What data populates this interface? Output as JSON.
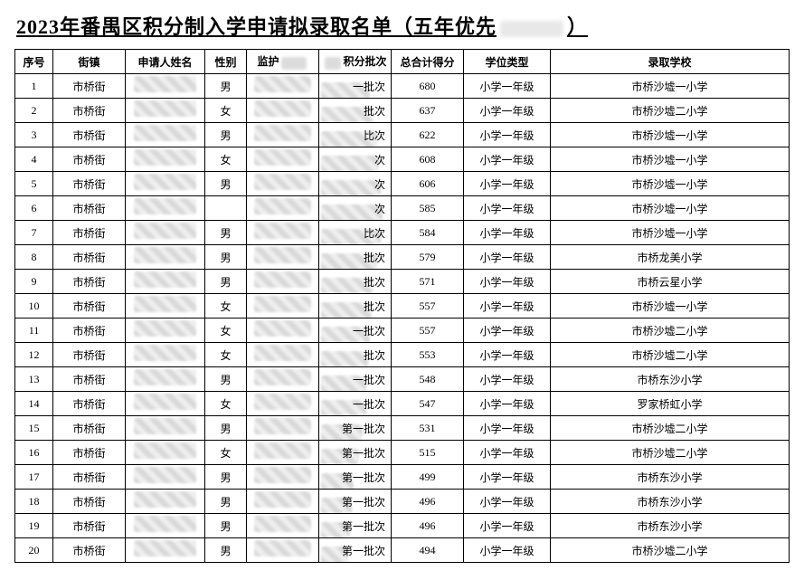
{
  "title_prefix": "2023年番禺区积分制入学申请拟录取名单（五年优先",
  "title_suffix": "）",
  "columns": {
    "idx": "序号",
    "town": "街镇",
    "name": "申请人姓名",
    "sex": "性别",
    "guard_prefix": "监护",
    "batch_suffix": "积分批次",
    "score": "总合计得分",
    "grade": "学位类型",
    "school": "录取学校"
  },
  "rows": [
    {
      "idx": "1",
      "town": "市桥街",
      "sex": "男",
      "batch": "一批次",
      "score": "680",
      "grade": "小学一年级",
      "school": "市桥沙墟一小学"
    },
    {
      "idx": "2",
      "town": "市桥街",
      "sex": "女",
      "batch": "批次",
      "score": "637",
      "grade": "小学一年级",
      "school": "市桥沙墟二小学"
    },
    {
      "idx": "3",
      "town": "市桥街",
      "sex": "男",
      "batch": "比次",
      "score": "622",
      "grade": "小学一年级",
      "school": "市桥沙墟一小学"
    },
    {
      "idx": "4",
      "town": "市桥街",
      "sex": "女",
      "batch": "次",
      "score": "608",
      "grade": "小学一年级",
      "school": "市桥沙墟一小学"
    },
    {
      "idx": "5",
      "town": "市桥街",
      "sex": "男",
      "batch": "次",
      "score": "606",
      "grade": "小学一年级",
      "school": "市桥沙墟一小学"
    },
    {
      "idx": "6",
      "town": "市桥街",
      "sex": "",
      "batch": "次",
      "score": "585",
      "grade": "小学一年级",
      "school": "市桥沙墟一小学"
    },
    {
      "idx": "7",
      "town": "市桥街",
      "sex": "男",
      "batch": "比次",
      "score": "584",
      "grade": "小学一年级",
      "school": "市桥沙墟一小学"
    },
    {
      "idx": "8",
      "town": "市桥街",
      "sex": "男",
      "batch": "批次",
      "score": "579",
      "grade": "小学一年级",
      "school": "市桥龙美小学"
    },
    {
      "idx": "9",
      "town": "市桥街",
      "sex": "男",
      "batch": "批次",
      "score": "571",
      "grade": "小学一年级",
      "school": "市桥云星小学"
    },
    {
      "idx": "10",
      "town": "市桥街",
      "sex": "女",
      "batch": "批次",
      "score": "557",
      "grade": "小学一年级",
      "school": "市桥沙墟一小学"
    },
    {
      "idx": "11",
      "town": "市桥街",
      "sex": "女",
      "batch": "一批次",
      "score": "557",
      "grade": "小学一年级",
      "school": "市桥沙墟二小学"
    },
    {
      "idx": "12",
      "town": "市桥街",
      "sex": "女",
      "batch": "批次",
      "score": "553",
      "grade": "小学一年级",
      "school": "市桥沙墟二小学"
    },
    {
      "idx": "13",
      "town": "市桥街",
      "sex": "男",
      "batch": "一批次",
      "score": "548",
      "grade": "小学一年级",
      "school": "市桥东沙小学"
    },
    {
      "idx": "14",
      "town": "市桥街",
      "sex": "女",
      "batch": "一批次",
      "score": "547",
      "grade": "小学一年级",
      "school": "罗家桥虹小学"
    },
    {
      "idx": "15",
      "town": "市桥街",
      "sex": "男",
      "batch": "第一批次",
      "score": "531",
      "grade": "小学一年级",
      "school": "市桥沙墟二小学"
    },
    {
      "idx": "16",
      "town": "市桥街",
      "sex": "女",
      "batch": "第一批次",
      "score": "515",
      "grade": "小学一年级",
      "school": "市桥沙墟二小学"
    },
    {
      "idx": "17",
      "town": "市桥街",
      "sex": "男",
      "batch": "第一批次",
      "score": "499",
      "grade": "小学一年级",
      "school": "市桥东沙小学"
    },
    {
      "idx": "18",
      "town": "市桥街",
      "sex": "男",
      "batch": "第一批次",
      "score": "496",
      "grade": "小学一年级",
      "school": "市桥东沙小学"
    },
    {
      "idx": "19",
      "town": "市桥街",
      "sex": "男",
      "batch": "第一批次",
      "score": "496",
      "grade": "小学一年级",
      "school": "市桥东沙小学"
    },
    {
      "idx": "20",
      "town": "市桥街",
      "sex": "男",
      "batch": "第一批次",
      "score": "494",
      "grade": "小学一年级",
      "school": "市桥沙墟二小学"
    }
  ],
  "redact_widths": [
    54,
    58,
    62,
    64,
    66,
    68,
    66,
    62,
    58,
    56,
    54,
    52,
    50,
    50,
    46,
    42,
    36,
    34,
    32,
    30
  ]
}
